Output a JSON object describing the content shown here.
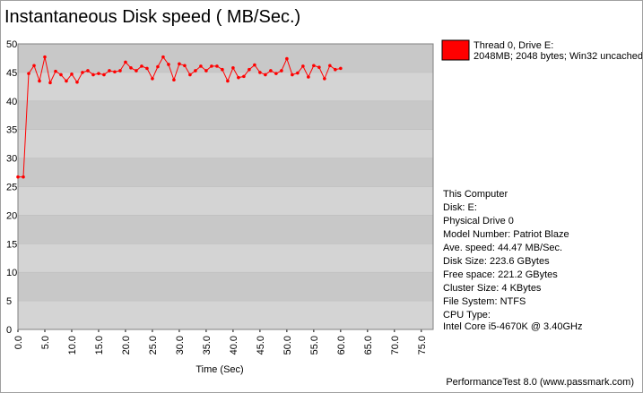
{
  "chart_data": {
    "type": "line",
    "title": "Instantaneous Disk speed ( MB/Sec.)",
    "x_label": "Time (Sec)",
    "x": [
      0,
      1,
      2,
      3,
      4,
      5,
      6,
      7,
      8,
      9,
      10,
      11,
      12,
      13,
      14,
      15,
      16,
      17,
      18,
      19,
      20,
      21,
      22,
      23,
      24,
      25,
      26,
      27,
      28,
      29,
      30,
      31,
      32,
      33,
      34,
      35,
      36,
      37,
      38,
      39,
      40,
      41,
      42,
      43,
      44,
      45,
      46,
      47,
      48,
      49,
      50,
      51,
      52,
      53,
      54,
      55,
      56,
      57,
      58,
      59,
      60
    ],
    "series": [
      {
        "name": "Thread 0, Drive E:",
        "description": "2048MB; 2048 bytes; Win32 uncached",
        "color": "#ff0000",
        "values": [
          26.7,
          26.7,
          44.8,
          46.2,
          43.5,
          47.7,
          43.2,
          45.2,
          44.6,
          43.5,
          44.7,
          43.3,
          45.0,
          45.3,
          44.6,
          44.8,
          44.6,
          45.3,
          45.1,
          45.3,
          46.8,
          45.8,
          45.3,
          46.1,
          45.7,
          43.9,
          46.0,
          47.7,
          46.4,
          43.7,
          46.5,
          46.2,
          44.6,
          45.3,
          46.1,
          45.3,
          46.1,
          46.1,
          45.5,
          43.5,
          45.8,
          44.1,
          44.3,
          45.5,
          46.3,
          45.0,
          44.6,
          45.3,
          44.8,
          45.3,
          47.4,
          44.6,
          44.9,
          46.1,
          44.2,
          46.2,
          45.9,
          43.9,
          46.2,
          45.5,
          45.7
        ]
      }
    ],
    "xlim": [
      0,
      77.2
    ],
    "ylim": [
      0,
      50
    ],
    "xticks": [
      {
        "value": 0,
        "label": "0.0"
      },
      {
        "value": 5,
        "label": "5.0"
      },
      {
        "value": 10,
        "label": "10.0"
      },
      {
        "value": 15,
        "label": "15.0"
      },
      {
        "value": 20,
        "label": "20.0"
      },
      {
        "value": 25,
        "label": "25.0"
      },
      {
        "value": 30,
        "label": "30.0"
      },
      {
        "value": 35,
        "label": "35.0"
      },
      {
        "value": 40,
        "label": "40.0"
      },
      {
        "value": 45,
        "label": "45.0"
      },
      {
        "value": 50,
        "label": "50.0"
      },
      {
        "value": 55,
        "label": "55.0"
      },
      {
        "value": 60,
        "label": "60.0"
      },
      {
        "value": 65,
        "label": "65.0"
      },
      {
        "value": 70,
        "label": "70.0"
      },
      {
        "value": 75,
        "label": "75.0"
      }
    ],
    "yticks": [
      0,
      5,
      10,
      15,
      20,
      25,
      30,
      35,
      40,
      45,
      50
    ],
    "band_colors": [
      "#c8c8c8",
      "#d4d4d4"
    ],
    "info": [
      "This Computer",
      "Disk: E:",
      "Physical Drive 0",
      "Model Number: Patriot Blaze",
      "Ave. speed: 44.47 MB/Sec.",
      "Disk Size: 223.6 GBytes",
      "Free space: 221.2 GBytes",
      "Cluster Size: 4 KBytes",
      "File System: NTFS",
      "CPU Type:",
      "Intel Core i5-4670K @ 3.40GHz"
    ],
    "footer": "PerformanceTest 8.0 (www.passmark.com)"
  }
}
